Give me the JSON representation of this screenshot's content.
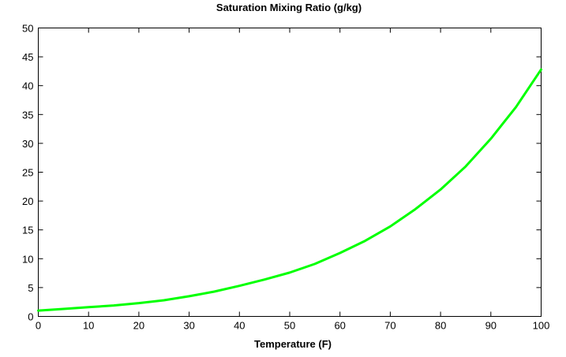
{
  "chart_data": {
    "type": "line",
    "title": "Saturation Mixing Ratio (g/kg)",
    "xlabel": "Temperature (F)",
    "ylabel": "",
    "xlim": [
      0,
      100
    ],
    "ylim": [
      0,
      50
    ],
    "x_ticks": [
      0,
      10,
      20,
      30,
      40,
      50,
      60,
      70,
      80,
      90,
      100
    ],
    "y_ticks": [
      0,
      5,
      10,
      15,
      20,
      25,
      30,
      35,
      40,
      45,
      50
    ],
    "grid": false,
    "legend": "none",
    "series": [
      {
        "color": "#00ff00",
        "x": [
          0,
          5,
          10,
          15,
          20,
          25,
          30,
          35,
          40,
          45,
          50,
          55,
          60,
          65,
          70,
          75,
          80,
          85,
          90,
          95,
          100
        ],
        "y": [
          1.0,
          1.3,
          1.6,
          1.9,
          2.3,
          2.8,
          3.5,
          4.3,
          5.3,
          6.4,
          7.6,
          9.1,
          11.0,
          13.1,
          15.6,
          18.6,
          22.0,
          26.0,
          30.8,
          36.3,
          42.8
        ]
      }
    ]
  }
}
